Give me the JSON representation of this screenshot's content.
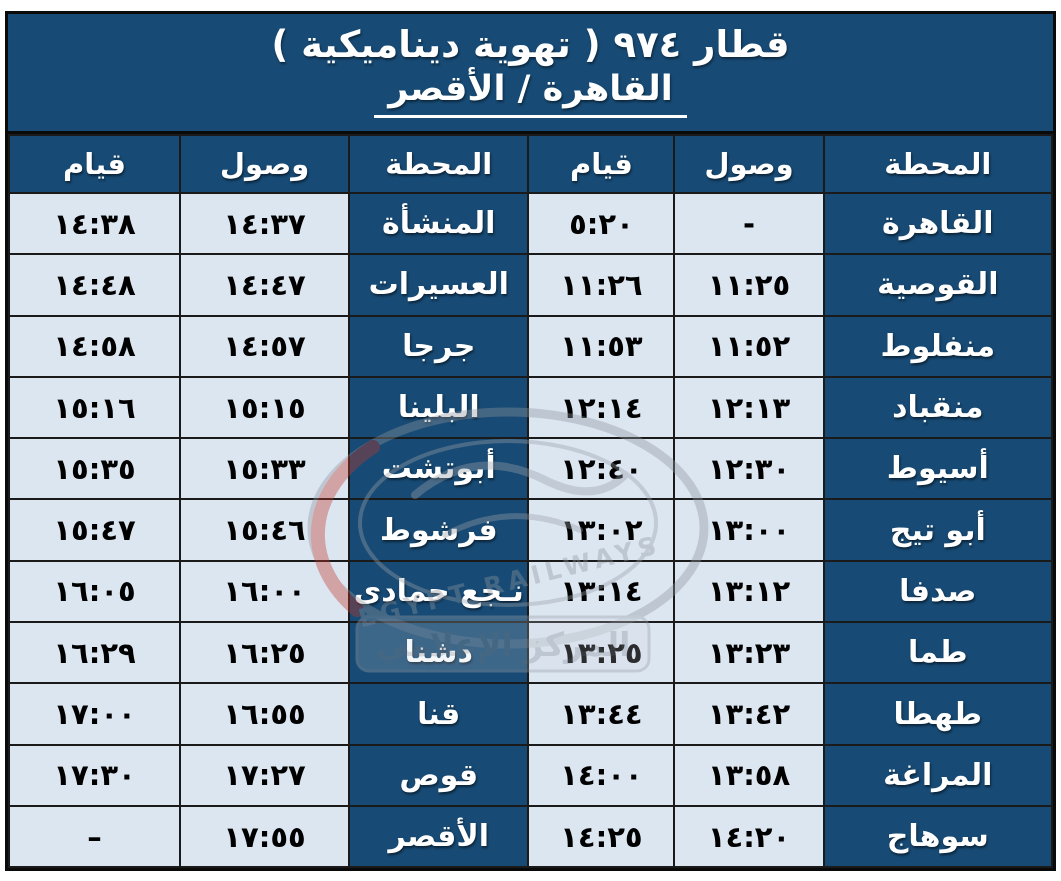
{
  "title": {
    "line1": "قطار ٩٧٤   ( تهوية ديناميكية )",
    "line2": "القاهرة  /  الأقصر"
  },
  "header": {
    "station": "المحطة",
    "arrival": "وصول",
    "departure": "قيام"
  },
  "rows": [
    {
      "r_station": "القاهرة",
      "r_arr": "-",
      "r_dep": "٥:٢٠",
      "l_station": "المنشأة",
      "l_arr": "١٤:٣٧",
      "l_dep": "١٤:٣٨"
    },
    {
      "r_station": "القوصية",
      "r_arr": "١١:٢٥",
      "r_dep": "١١:٢٦",
      "l_station": "العسيرات",
      "l_arr": "١٤:٤٧",
      "l_dep": "١٤:٤٨"
    },
    {
      "r_station": "منفلوط",
      "r_arr": "١١:٥٢",
      "r_dep": "١١:٥٣",
      "l_station": "جرجا",
      "l_arr": "١٤:٥٧",
      "l_dep": "١٤:٥٨"
    },
    {
      "r_station": "منقباد",
      "r_arr": "١٢:١٣",
      "r_dep": "١٢:١٤",
      "l_station": "البلينا",
      "l_arr": "١٥:١٥",
      "l_dep": "١٥:١٦"
    },
    {
      "r_station": "أسيوط",
      "r_arr": "١٢:٣٠",
      "r_dep": "١٢:٤٠",
      "l_station": "أبوتشت",
      "l_arr": "١٥:٣٣",
      "l_dep": "١٥:٣٥"
    },
    {
      "r_station": "أبو تيج",
      "r_arr": "١٣:٠٠",
      "r_dep": "١٣:٠٢",
      "l_station": "فرشوط",
      "l_arr": "١٥:٤٦",
      "l_dep": "١٥:٤٧"
    },
    {
      "r_station": "صدفا",
      "r_arr": "١٣:١٢",
      "r_dep": "١٣:١٤",
      "l_station": "نـجع حمادى",
      "l_arr": "١٦:٠٠",
      "l_dep": "١٦:٠٥"
    },
    {
      "r_station": "طما",
      "r_arr": "١٣:٢٣",
      "r_dep": "١٣:٢٥",
      "l_station": "دشنا",
      "l_arr": "١٦:٢٥",
      "l_dep": "١٦:٢٩"
    },
    {
      "r_station": "طهطا",
      "r_arr": "١٣:٤٢",
      "r_dep": "١٣:٤٤",
      "l_station": "قنا",
      "l_arr": "١٦:٥٥",
      "l_dep": "١٧:٠٠"
    },
    {
      "r_station": "المراغة",
      "r_arr": "١٣:٥٨",
      "r_dep": "١٤:٠٠",
      "l_station": "قوص",
      "l_arr": "١٧:٢٧",
      "l_dep": "١٧:٣٠"
    },
    {
      "r_station": "سوهاج",
      "r_arr": "١٤:٢٠",
      "r_dep": "١٤:٢٥",
      "l_station": "الأقصر",
      "l_arr": "١٧:٥٥",
      "l_dep": "–"
    }
  ],
  "watermark": {
    "arc_text": "EGYPT RAILWAYS",
    "box_text": "المركز الإعلامي"
  },
  "colors": {
    "navy": "#174a74",
    "light_cell": "#dce6f1",
    "border": "#1a1a1a",
    "watermark_gray": "#8f969e",
    "watermark_red": "#c0392b"
  }
}
